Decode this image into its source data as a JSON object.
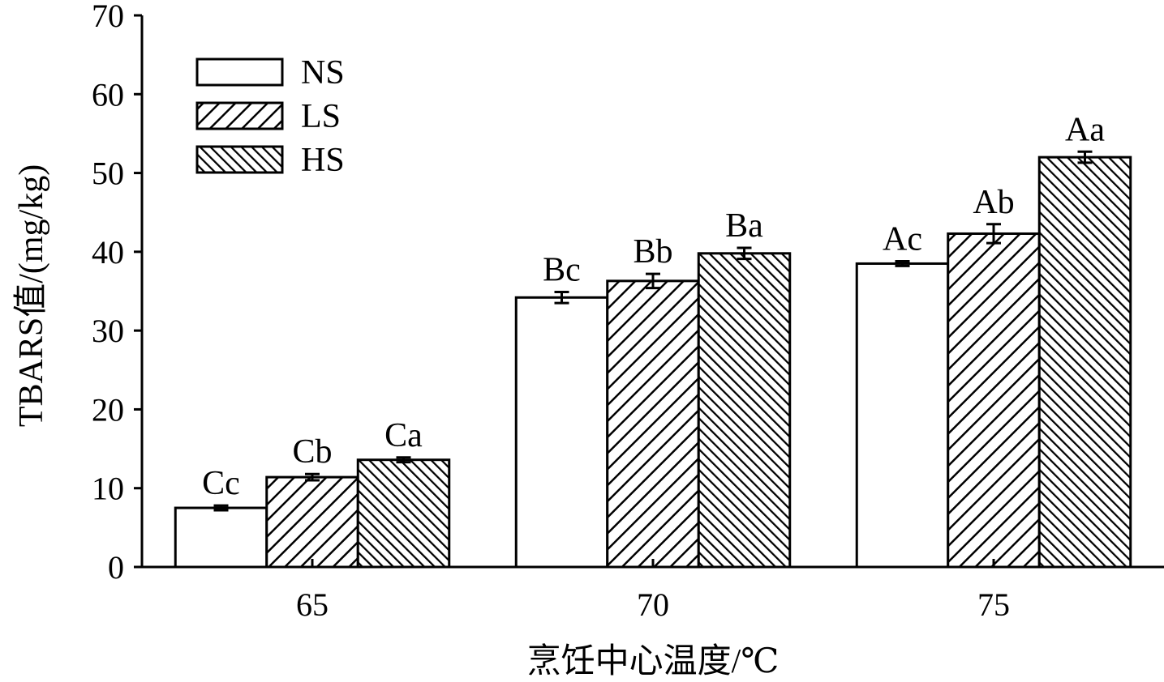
{
  "chart_data": {
    "type": "bar",
    "ylabel": "TBARS值/(mg/kg)",
    "xlabel": "烹饪中心温度/℃",
    "categories": [
      "65",
      "70",
      "75"
    ],
    "series": [
      {
        "name": "NS",
        "color": "#000000",
        "hatch": "none",
        "values": [
          7.5,
          34.2,
          38.5
        ],
        "errors": [
          0.3,
          0.7,
          0.3
        ],
        "letters": [
          "Cc",
          "Bc",
          "Ac"
        ]
      },
      {
        "name": "LS",
        "color": "#000000",
        "hatch": "sparse-forward",
        "values": [
          11.4,
          36.3,
          42.3
        ],
        "errors": [
          0.4,
          0.9,
          1.2
        ],
        "letters": [
          "Cb",
          "Bb",
          "Ab"
        ]
      },
      {
        "name": "HS",
        "color": "#000000",
        "hatch": "dense-backward",
        "values": [
          13.6,
          39.8,
          52.0
        ],
        "errors": [
          0.3,
          0.7,
          0.7
        ],
        "letters": [
          "Ca",
          "Ba",
          "Aa"
        ]
      }
    ],
    "ylim": [
      0,
      70
    ],
    "yticks": [
      0,
      10,
      20,
      30,
      40,
      50,
      60,
      70
    ],
    "legend": "upper-left"
  }
}
